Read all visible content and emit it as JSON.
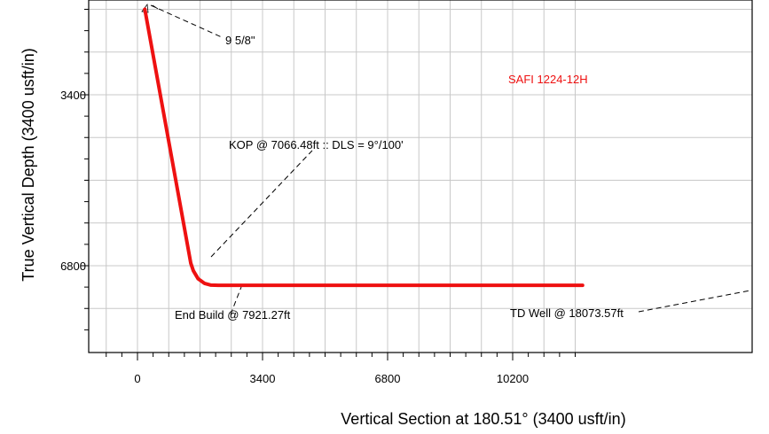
{
  "chart_data": {
    "type": "line",
    "title": "",
    "xlabel": "Vertical Section at 180.51° (3400 usft/in)",
    "ylabel": "True Vertical Depth (3400 usft/in)",
    "xlim": [
      -1000,
      12200
    ],
    "ylim": [
      1700,
      8300
    ],
    "y_inverted": true,
    "grid": true,
    "x_ticks": [
      0,
      3400,
      6800,
      10200
    ],
    "x_tick_labels": [
      "0",
      "3400",
      "6800",
      "10200"
    ],
    "y_ticks": [
      3400,
      6800
    ],
    "y_tick_labels": [
      "3400",
      "6800"
    ],
    "series": [
      {
        "name": "SAFI 1224-12H",
        "color": "#ee1111",
        "x": [
          200,
          1450,
          1520,
          1650,
          1820,
          2000,
          2200,
          3400,
          6800,
          10200,
          12100
        ],
        "y": [
          1700,
          6750,
          6900,
          7060,
          7150,
          7185,
          7190,
          7190,
          7190,
          7190,
          7190
        ]
      }
    ],
    "annotations": [
      {
        "text": "9 5/8\""
      },
      {
        "text": "KOP @ 7066.48ft :: DLS = 9°/100'"
      },
      {
        "text": "End Build @ 7921.27ft"
      },
      {
        "text": "TD Well @ 18073.57ft"
      }
    ]
  }
}
